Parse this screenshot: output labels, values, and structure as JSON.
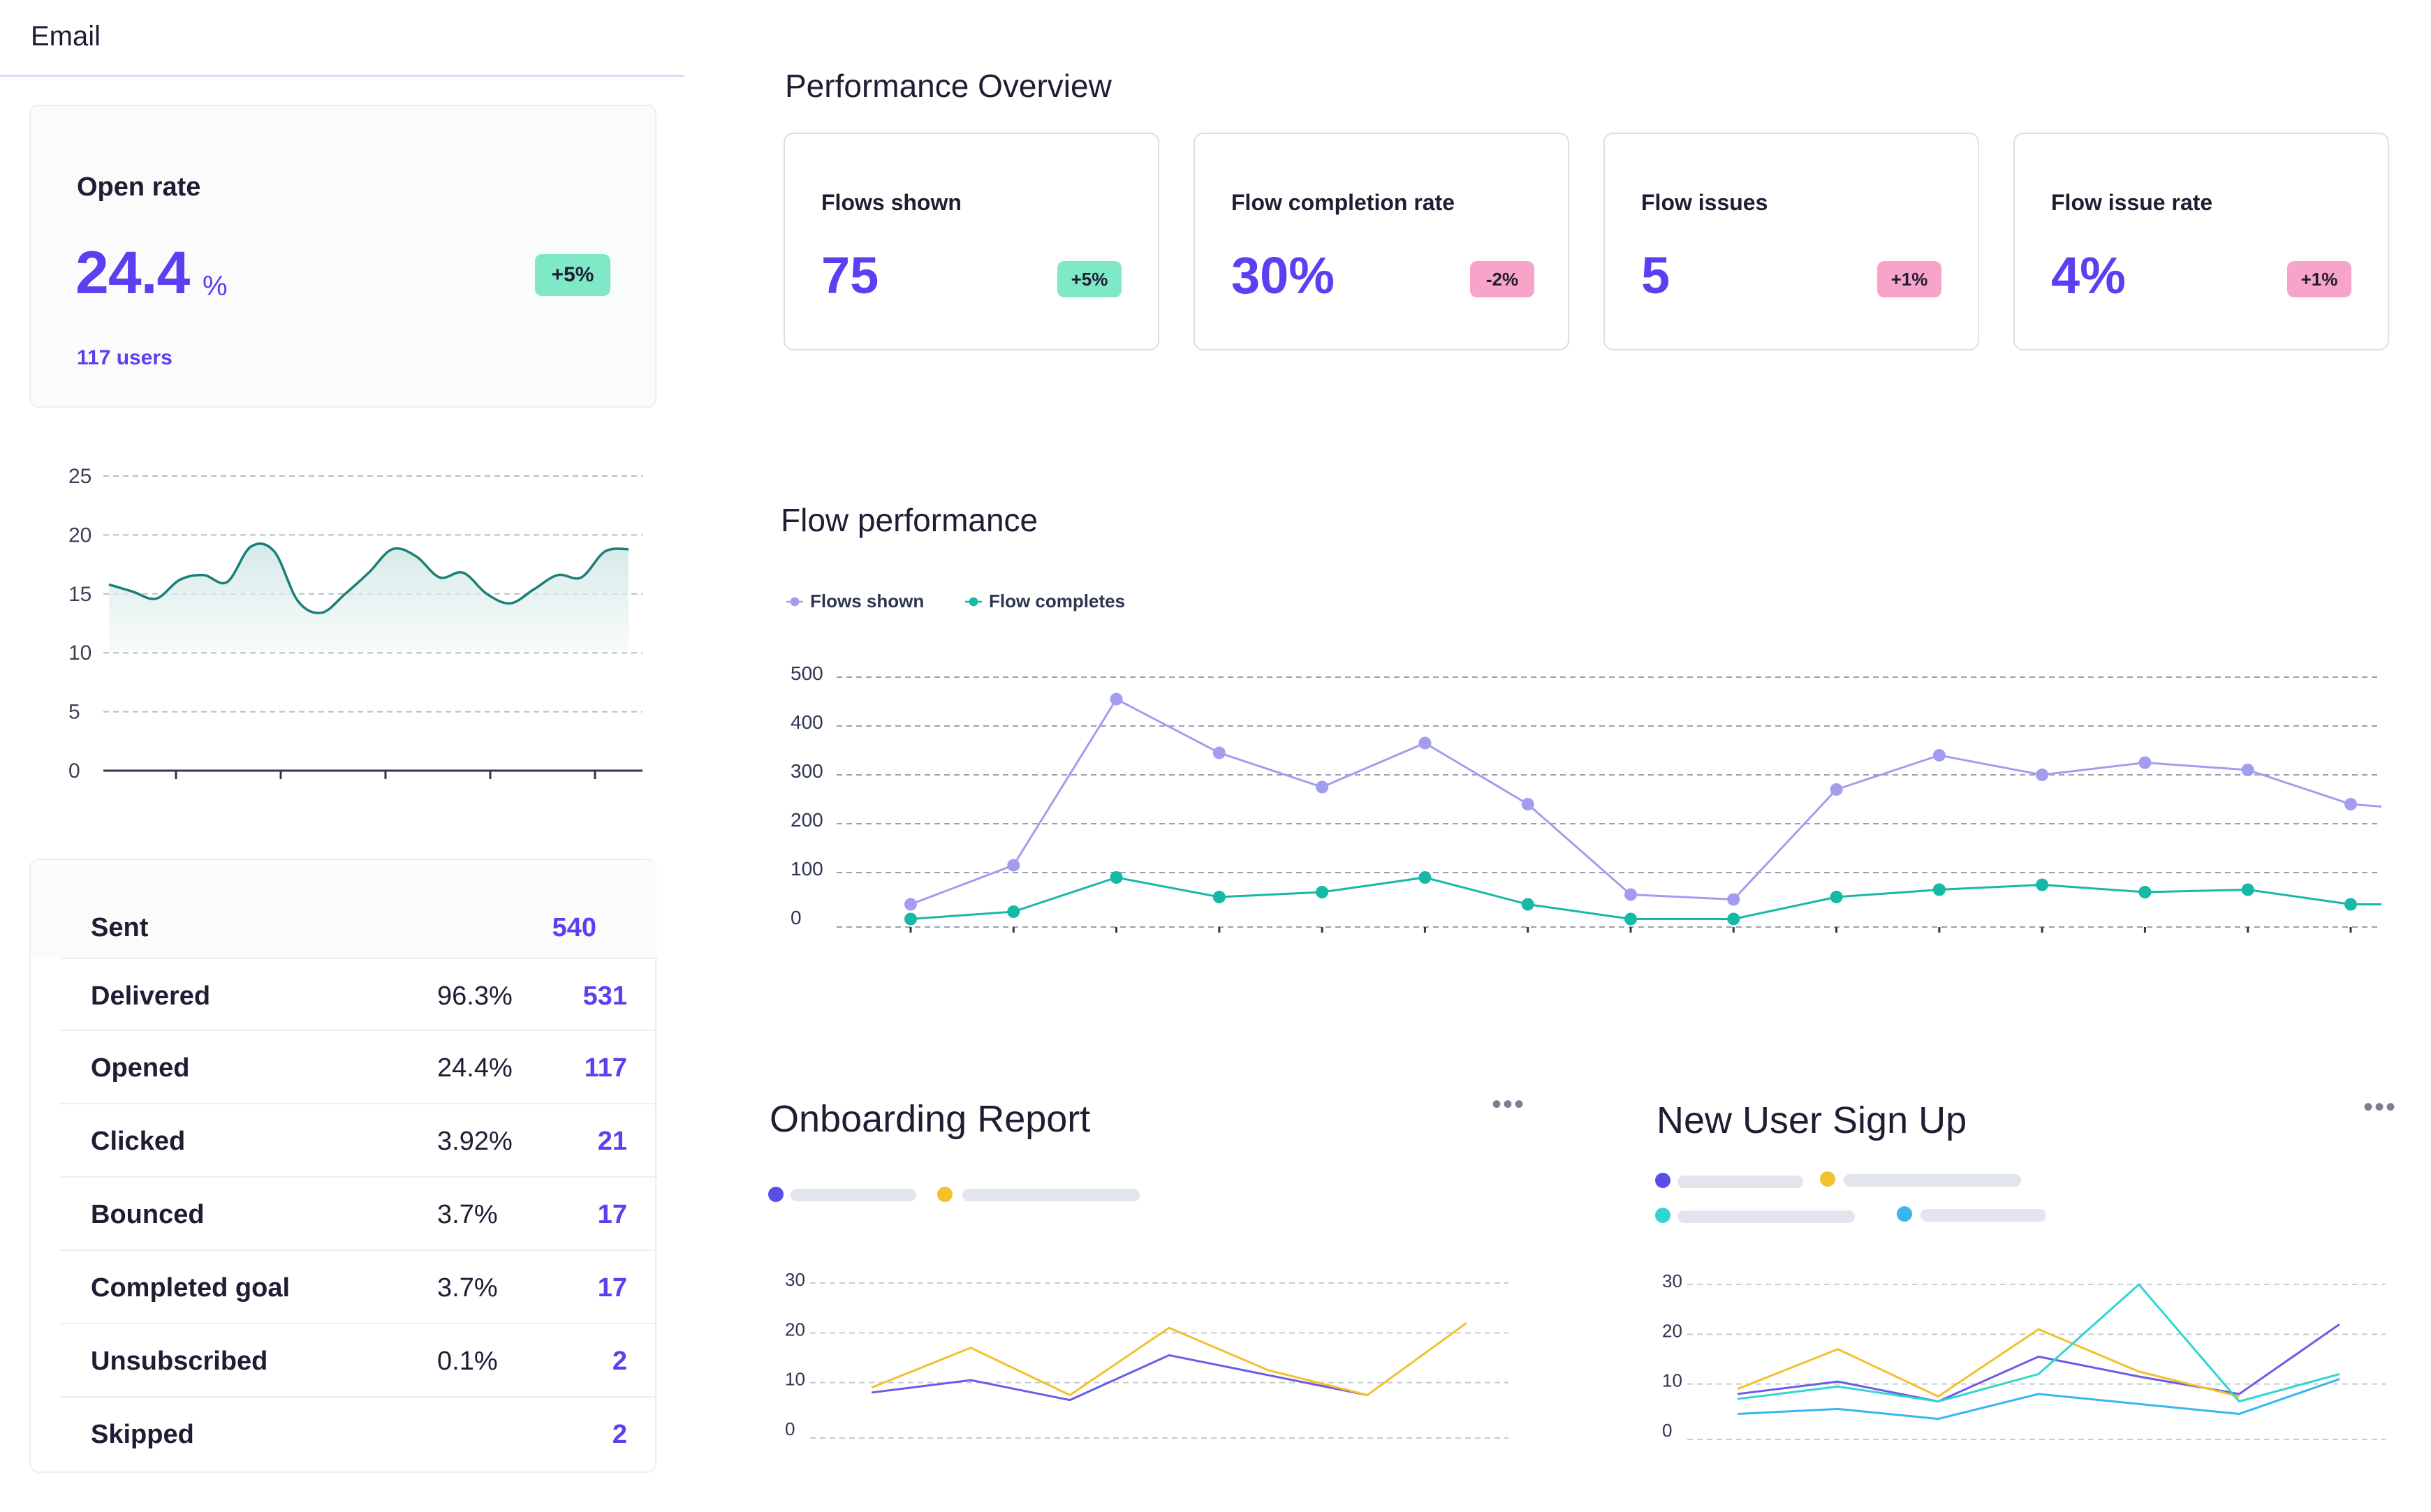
{
  "email_tab": {
    "label": "Email"
  },
  "open_rate": {
    "title": "Open rate",
    "value": "24.4",
    "unit": "%",
    "badge": "+5%",
    "users": "117 users"
  },
  "open_rate_chart": {
    "type": "area",
    "y_ticks": [
      "25",
      "20",
      "15",
      "10",
      "5",
      "0"
    ],
    "ylim": [
      0,
      25
    ],
    "values": [
      15.8,
      15.2,
      14.6,
      16.2,
      16.6,
      16.0,
      19.0,
      18.6,
      14.4,
      13.4,
      15.0,
      16.8,
      18.8,
      18.2,
      16.4,
      16.8,
      15.0,
      14.2,
      15.4,
      16.6,
      16.4,
      18.6,
      18.8
    ],
    "color": "#1a7f7a"
  },
  "email_stats": [
    {
      "name": "Sent",
      "rate": "",
      "count": "540"
    },
    {
      "name": "Delivered",
      "rate": "96.3%",
      "count": "531"
    },
    {
      "name": "Opened",
      "rate": "24.4%",
      "count": "117"
    },
    {
      "name": "Clicked",
      "rate": "3.92%",
      "count": "21"
    },
    {
      "name": "Bounced",
      "rate": "3.7%",
      "count": "17"
    },
    {
      "name": "Completed goal",
      "rate": "3.7%",
      "count": "17"
    },
    {
      "name": "Unsubscribed",
      "rate": "0.1%",
      "count": "2"
    },
    {
      "name": "Skipped",
      "rate": "",
      "count": "2"
    }
  ],
  "performance": {
    "title": "Performance Overview",
    "kpis": [
      {
        "title": "Flows shown",
        "value": "75",
        "badge": "+5%",
        "tone": "green"
      },
      {
        "title": "Flow completion rate",
        "value": "30%",
        "badge": "-2%",
        "tone": "pink"
      },
      {
        "title": "Flow issues",
        "value": "5",
        "badge": "+1%",
        "tone": "pink"
      },
      {
        "title": "Flow issue rate",
        "value": "4%",
        "badge": "+1%",
        "tone": "pink"
      }
    ]
  },
  "flow_performance": {
    "title": "Flow performance",
    "legend": [
      "Flows shown",
      "Flow completes"
    ]
  },
  "chart_data": [
    {
      "type": "line",
      "y_ticks": [
        "500",
        "400",
        "300",
        "200",
        "100",
        "0"
      ],
      "ylim": [
        0,
        500
      ],
      "grid": true,
      "legend": "top-left",
      "series": [
        {
          "name": "Flows shown",
          "color": "#a39df0",
          "values": [
            35,
            115,
            455,
            345,
            275,
            365,
            240,
            55,
            45,
            270,
            340,
            300,
            325,
            310,
            240
          ]
        },
        {
          "name": "Flow completes",
          "color": "#16b8a6",
          "values": [
            5,
            20,
            90,
            50,
            60,
            90,
            35,
            5,
            5,
            50,
            65,
            75,
            60,
            65,
            35
          ]
        }
      ]
    }
  ],
  "onboarding": {
    "title": "Onboarding Report",
    "more": "•••",
    "y_ticks": [
      "30",
      "20",
      "10",
      "0"
    ],
    "ylim": [
      0,
      30
    ],
    "series": [
      {
        "color": "#6b5be6",
        "values": [
          8,
          10.5,
          6.5,
          15.5,
          11.5,
          7.5
        ]
      },
      {
        "color": "#f2c12e",
        "values": [
          9,
          17,
          7.5,
          21,
          12.5,
          7.5,
          22
        ]
      }
    ],
    "legend_colors": [
      "#5b4ee8",
      "#f2c12e"
    ]
  },
  "signup": {
    "title": "New User Sign Up",
    "more": "•••",
    "y_ticks": [
      "30",
      "20",
      "10",
      "0"
    ],
    "ylim": [
      0,
      30
    ],
    "series": [
      {
        "color": "#6b5be6",
        "values": [
          8,
          10.5,
          6.5,
          15.5,
          11.5,
          8,
          22
        ]
      },
      {
        "color": "#f2c12e",
        "values": [
          9,
          17,
          7.5,
          21,
          12.5,
          7.5
        ]
      },
      {
        "color": "#2fd6cf",
        "values": [
          7,
          9.5,
          6.5,
          12,
          30,
          6.5,
          12
        ]
      },
      {
        "color": "#38b6ef",
        "values": [
          4,
          5,
          3,
          8,
          6,
          4,
          11
        ]
      }
    ],
    "legend_colors": [
      "#5b4ee8",
      "#f2c12e",
      "#2fd6cf",
      "#38b6ef"
    ]
  }
}
